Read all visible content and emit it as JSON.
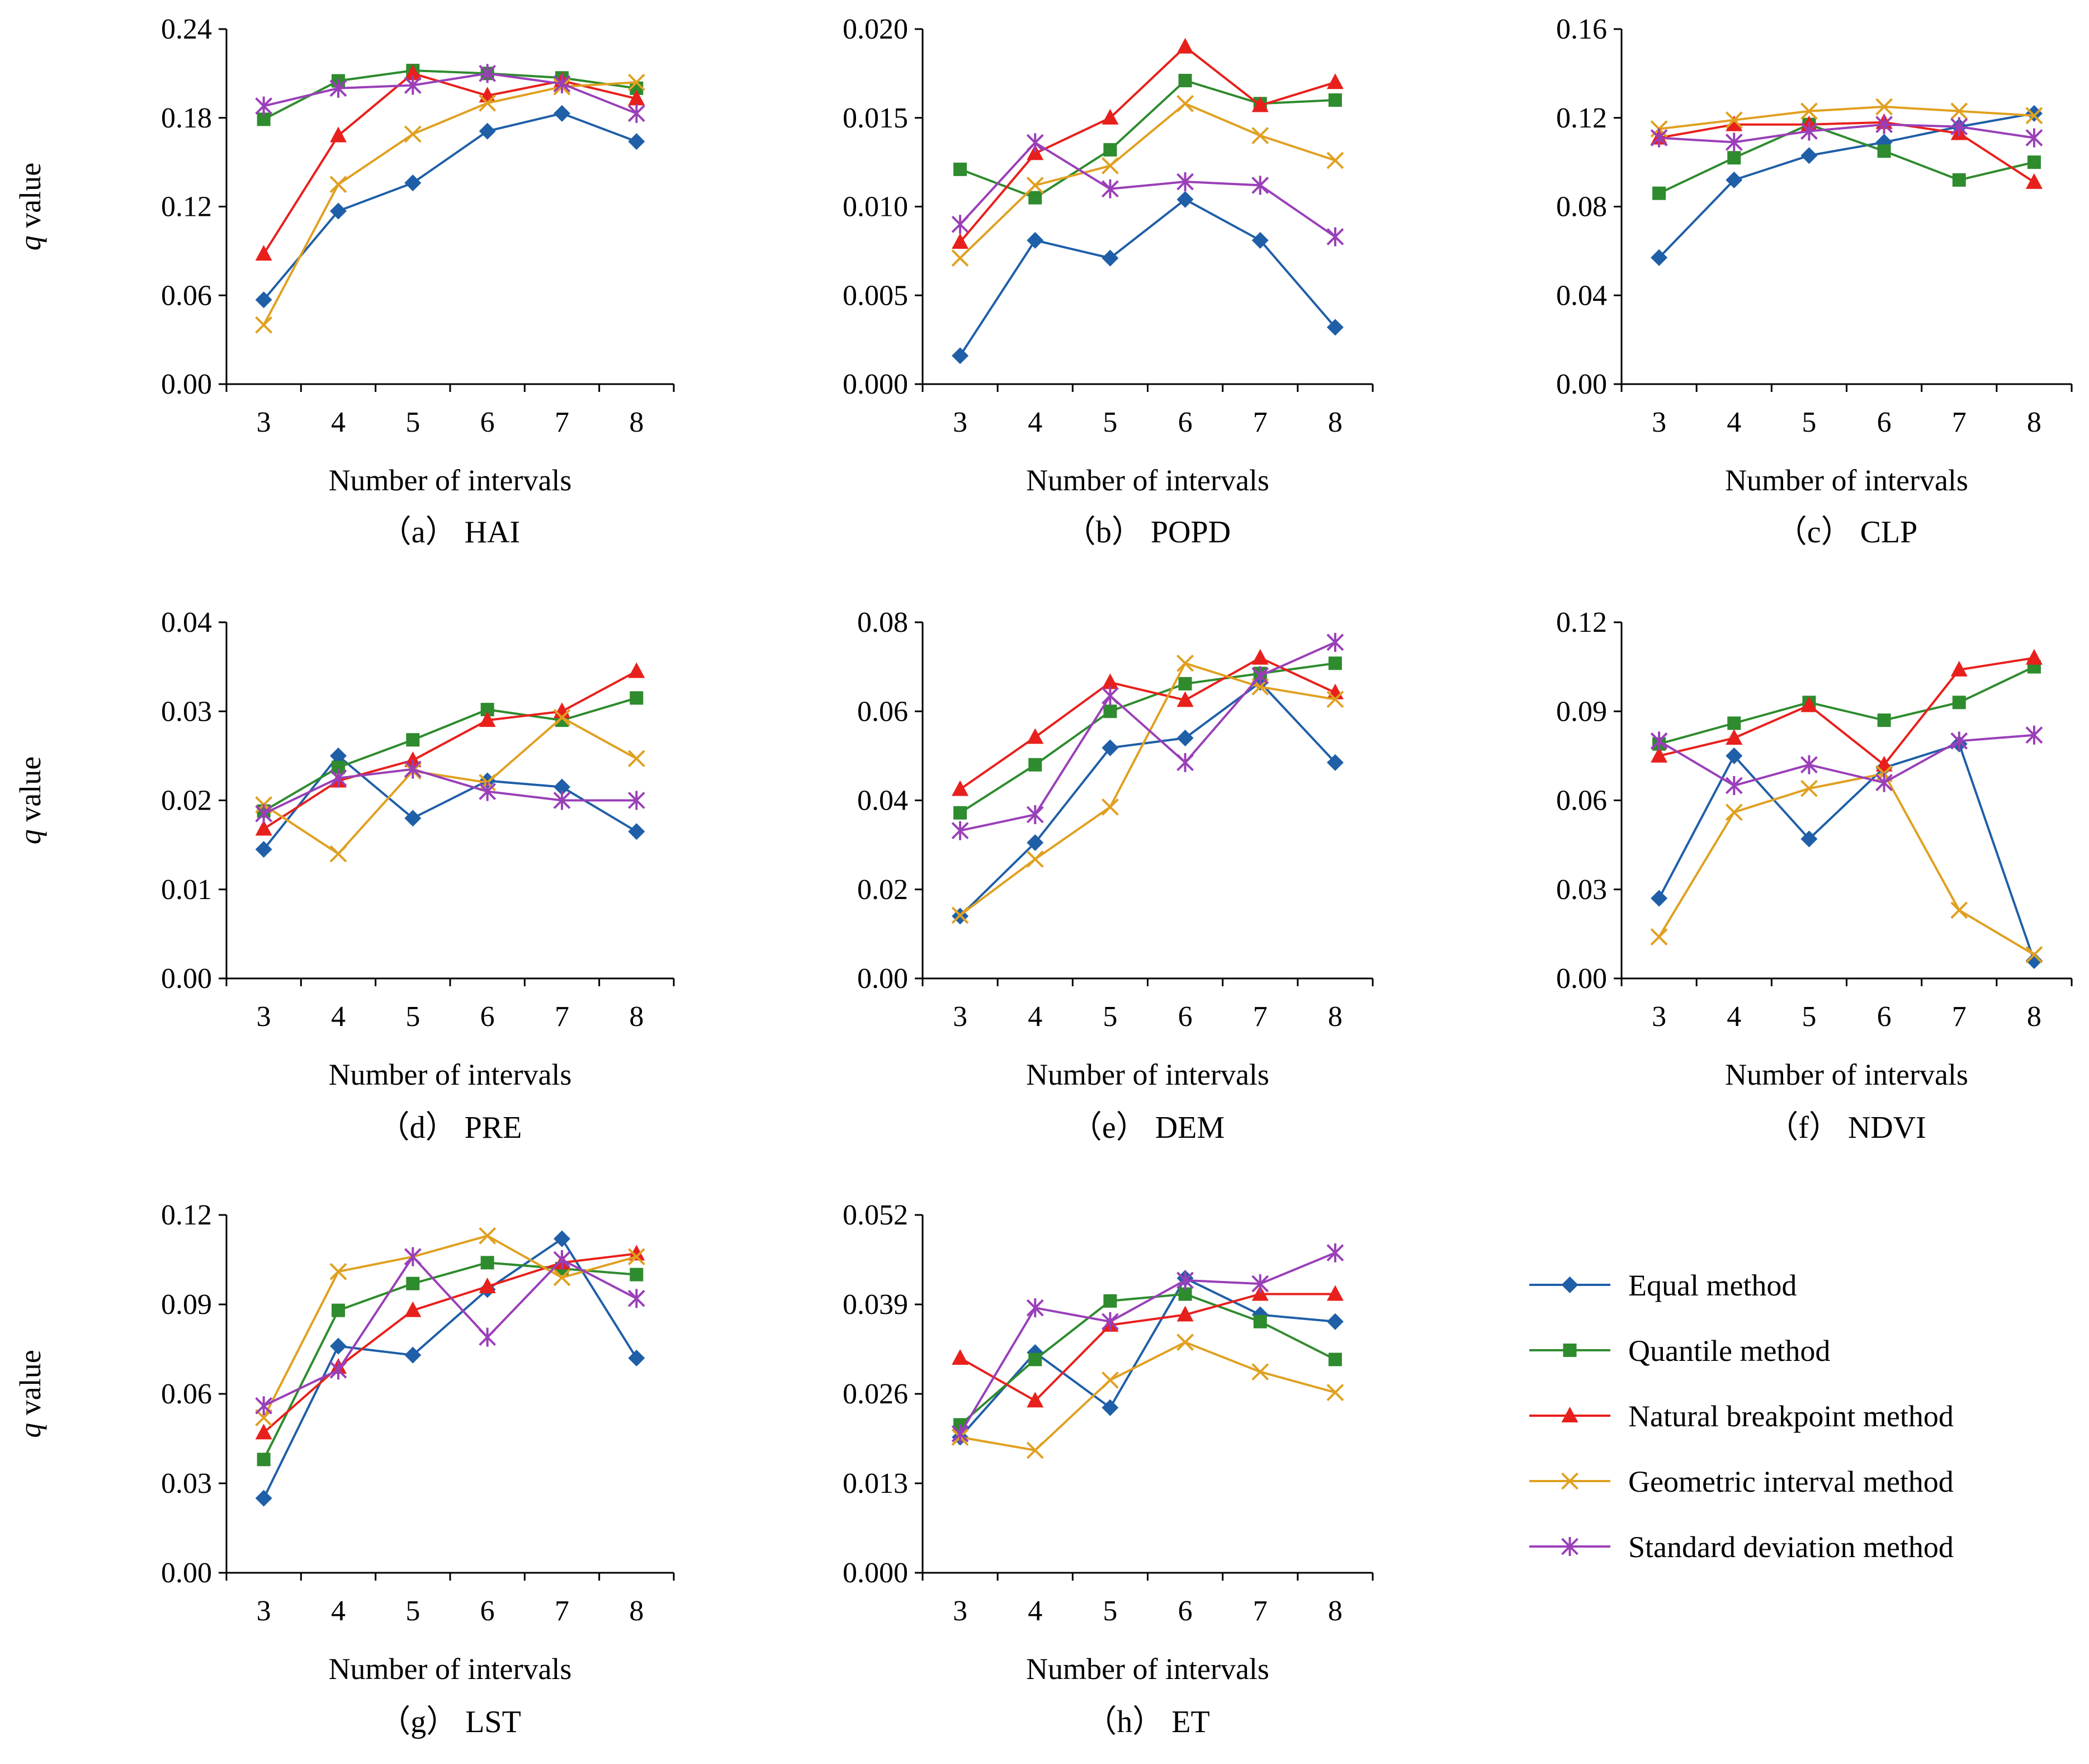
{
  "legend": [
    {
      "key": "equal",
      "label": "Equal method",
      "color": "#1f5fa8",
      "marker": "diamond"
    },
    {
      "key": "quantile",
      "label": "Quantile method",
      "color": "#2e8b2e",
      "marker": "square"
    },
    {
      "key": "natural",
      "label": "Natural breakpoint method",
      "color": "#e8201c",
      "marker": "triangle"
    },
    {
      "key": "geometric",
      "label": "Geometric interval method",
      "color": "#e0a020",
      "marker": "x"
    },
    {
      "key": "stddev",
      "label": "Standard deviation method",
      "color": "#9a3fb8",
      "marker": "star"
    }
  ],
  "chart_data": [
    {
      "type": "line",
      "caption": "（a） HAI",
      "xlabel": "Number of intervals",
      "ylabel": "q value",
      "categories": [
        "3",
        "4",
        "5",
        "6",
        "7",
        "8"
      ],
      "ylim": [
        0,
        0.24
      ],
      "yticks": [
        "0.00",
        "0.06",
        "0.12",
        "0.18",
        "0.24"
      ],
      "series": [
        {
          "name": "Equal method",
          "values": [
            0.057,
            0.117,
            0.136,
            0.171,
            0.183,
            0.164
          ]
        },
        {
          "name": "Quantile method",
          "values": [
            0.179,
            0.205,
            0.212,
            0.21,
            0.207,
            0.2
          ]
        },
        {
          "name": "Natural breakpoint method",
          "values": [
            0.088,
            0.168,
            0.21,
            0.195,
            0.205,
            0.193
          ]
        },
        {
          "name": "Geometric interval method",
          "values": [
            0.04,
            0.135,
            0.169,
            0.19,
            0.201,
            0.204
          ]
        },
        {
          "name": "Standard deviation method",
          "values": [
            0.188,
            0.2,
            0.202,
            0.21,
            0.203,
            0.183
          ]
        }
      ]
    },
    {
      "type": "line",
      "caption": "（b） POPD",
      "xlabel": "Number of intervals",
      "ylabel": "",
      "categories": [
        "3",
        "4",
        "5",
        "6",
        "7",
        "8"
      ],
      "ylim": [
        0,
        0.02
      ],
      "yticks": [
        "0.000",
        "0.005",
        "0.010",
        "0.015",
        "0.020"
      ],
      "series": [
        {
          "name": "Equal method",
          "values": [
            0.0016,
            0.0081,
            0.0071,
            0.0104,
            0.0081,
            0.0032
          ]
        },
        {
          "name": "Quantile method",
          "values": [
            0.0121,
            0.0105,
            0.0132,
            0.0171,
            0.0158,
            0.016
          ]
        },
        {
          "name": "Natural breakpoint method",
          "values": [
            0.008,
            0.013,
            0.015,
            0.019,
            0.0157,
            0.017
          ]
        },
        {
          "name": "Geometric interval method",
          "values": [
            0.0071,
            0.0112,
            0.0123,
            0.0158,
            0.014,
            0.0126
          ]
        },
        {
          "name": "Standard deviation method",
          "values": [
            0.009,
            0.0136,
            0.011,
            0.0114,
            0.0112,
            0.0083
          ]
        }
      ]
    },
    {
      "type": "line",
      "caption": "（c） CLP",
      "xlabel": "Number of intervals",
      "ylabel": "",
      "categories": [
        "3",
        "4",
        "5",
        "6",
        "7",
        "8"
      ],
      "ylim": [
        0,
        0.16
      ],
      "yticks": [
        "0.00",
        "0.04",
        "0.08",
        "0.12",
        "0.16"
      ],
      "series": [
        {
          "name": "Equal method",
          "values": [
            0.057,
            0.092,
            0.103,
            0.109,
            0.116,
            0.122
          ]
        },
        {
          "name": "Quantile method",
          "values": [
            0.086,
            0.102,
            0.117,
            0.105,
            0.092,
            0.1
          ]
        },
        {
          "name": "Natural breakpoint method",
          "values": [
            0.111,
            0.117,
            0.117,
            0.118,
            0.113,
            0.091
          ]
        },
        {
          "name": "Geometric interval method",
          "values": [
            0.115,
            0.119,
            0.123,
            0.125,
            0.123,
            0.121
          ]
        },
        {
          "name": "Standard deviation method",
          "values": [
            0.111,
            0.109,
            0.114,
            0.117,
            0.116,
            0.111
          ]
        }
      ]
    },
    {
      "type": "line",
      "caption": "（d） PRE",
      "xlabel": "Number of intervals",
      "ylabel": "q value",
      "categories": [
        "3",
        "4",
        "5",
        "6",
        "7",
        "8"
      ],
      "ylim": [
        0,
        0.04
      ],
      "yticks": [
        "0.00",
        "0.01",
        "0.02",
        "0.03",
        "0.04"
      ],
      "series": [
        {
          "name": "Equal method",
          "values": [
            0.0145,
            0.025,
            0.018,
            0.0222,
            0.0215,
            0.0165
          ]
        },
        {
          "name": "Quantile method",
          "values": [
            0.0188,
            0.0237,
            0.0268,
            0.0302,
            0.029,
            0.0315
          ]
        },
        {
          "name": "Natural breakpoint method",
          "values": [
            0.0168,
            0.0222,
            0.0245,
            0.029,
            0.03,
            0.0345
          ]
        },
        {
          "name": "Geometric interval method",
          "values": [
            0.0195,
            0.014,
            0.0233,
            0.022,
            0.0293,
            0.0247
          ]
        },
        {
          "name": "Standard deviation method",
          "values": [
            0.0185,
            0.0225,
            0.0235,
            0.021,
            0.02,
            0.02
          ]
        }
      ]
    },
    {
      "type": "line",
      "caption": "（e） DEM",
      "xlabel": "Number of intervals",
      "ylabel": "",
      "categories": [
        "3",
        "4",
        "5",
        "6",
        "7",
        "8"
      ],
      "ylim": [
        0,
        0.08
      ],
      "yticks": [
        "0.00",
        "0.02",
        "0.04",
        "0.06",
        "0.08"
      ],
      "series": [
        {
          "name": "Equal method",
          "values": [
            0.014,
            0.0305,
            0.0518,
            0.054,
            0.0665,
            0.0485
          ]
        },
        {
          "name": "Quantile method",
          "values": [
            0.0372,
            0.048,
            0.06,
            0.0662,
            0.0685,
            0.0708
          ]
        },
        {
          "name": "Natural breakpoint method",
          "values": [
            0.0425,
            0.0542,
            0.0665,
            0.0625,
            0.072,
            0.0642
          ]
        },
        {
          "name": "Geometric interval method",
          "values": [
            0.0142,
            0.0268,
            0.0385,
            0.0708,
            0.0655,
            0.0627
          ]
        },
        {
          "name": "Standard deviation method",
          "values": [
            0.0332,
            0.0368,
            0.0635,
            0.0485,
            0.068,
            0.0755
          ]
        }
      ]
    },
    {
      "type": "line",
      "caption": "（f） NDVI",
      "xlabel": "Number of intervals",
      "ylabel": "",
      "categories": [
        "3",
        "4",
        "5",
        "6",
        "7",
        "8"
      ],
      "ylim": [
        0,
        0.12
      ],
      "yticks": [
        "0.00",
        "0.03",
        "0.06",
        "0.09",
        "0.12"
      ],
      "series": [
        {
          "name": "Equal method",
          "values": [
            0.027,
            0.075,
            0.047,
            0.071,
            0.079,
            0.006
          ]
        },
        {
          "name": "Quantile method",
          "values": [
            0.079,
            0.086,
            0.093,
            0.087,
            0.093,
            0.105
          ]
        },
        {
          "name": "Natural breakpoint method",
          "values": [
            0.075,
            0.081,
            0.092,
            0.072,
            0.104,
            0.108
          ]
        },
        {
          "name": "Geometric interval method",
          "values": [
            0.014,
            0.056,
            0.064,
            0.069,
            0.023,
            0.008
          ]
        },
        {
          "name": "Standard deviation method",
          "values": [
            0.08,
            0.065,
            0.072,
            0.066,
            0.08,
            0.082
          ]
        }
      ]
    },
    {
      "type": "line",
      "caption": "（g） LST",
      "xlabel": "Number of intervals",
      "ylabel": "q value",
      "categories": [
        "3",
        "4",
        "5",
        "6",
        "7",
        "8"
      ],
      "ylim": [
        0,
        0.12
      ],
      "yticks": [
        "0.00",
        "0.03",
        "0.06",
        "0.09",
        "0.12"
      ],
      "series": [
        {
          "name": "Equal method",
          "values": [
            0.025,
            0.076,
            0.073,
            0.095,
            0.112,
            0.072
          ]
        },
        {
          "name": "Quantile method",
          "values": [
            0.038,
            0.088,
            0.097,
            0.104,
            0.102,
            0.1
          ]
        },
        {
          "name": "Natural breakpoint method",
          "values": [
            0.047,
            0.069,
            0.088,
            0.096,
            0.104,
            0.107
          ]
        },
        {
          "name": "Geometric interval method",
          "values": [
            0.052,
            0.101,
            0.106,
            0.113,
            0.099,
            0.106
          ]
        },
        {
          "name": "Standard deviation method",
          "values": [
            0.056,
            0.068,
            0.106,
            0.079,
            0.105,
            0.092
          ]
        }
      ]
    },
    {
      "type": "line",
      "caption": "（h） ET",
      "xlabel": "Number of intervals",
      "ylabel": "",
      "categories": [
        "3",
        "4",
        "5",
        "6",
        "7",
        "8"
      ],
      "ylim": [
        0,
        0.052
      ],
      "yticks": [
        "0.000",
        "0.013",
        "0.026",
        "0.039",
        "0.052"
      ],
      "series": [
        {
          "name": "Equal method",
          "values": [
            0.0197,
            0.032,
            0.024,
            0.0428,
            0.0375,
            0.0365
          ]
        },
        {
          "name": "Quantile method",
          "values": [
            0.0215,
            0.031,
            0.0395,
            0.0405,
            0.0365,
            0.031
          ]
        },
        {
          "name": "Natural breakpoint method",
          "values": [
            0.0312,
            0.025,
            0.036,
            0.0375,
            0.0405,
            0.0405
          ]
        },
        {
          "name": "Geometric interval method",
          "values": [
            0.0197,
            0.0178,
            0.028,
            0.0335,
            0.0292,
            0.0262
          ]
        },
        {
          "name": "Standard deviation method",
          "values": [
            0.0202,
            0.0385,
            0.0365,
            0.0425,
            0.042,
            0.0465
          ]
        }
      ]
    }
  ]
}
